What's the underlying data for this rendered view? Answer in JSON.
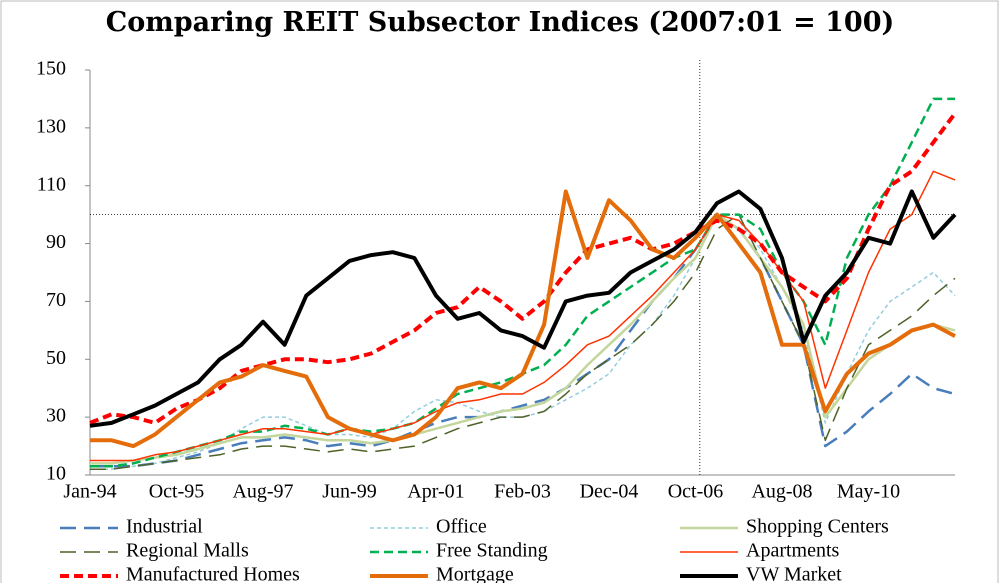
{
  "chart_data": {
    "type": "line",
    "title": "Comparing REIT Subsector Indices (2007:01 = 100)",
    "categories": [
      "Jan-94",
      null,
      null,
      null,
      "Oct-95",
      null,
      null,
      null,
      "Aug-97",
      null,
      null,
      null,
      "Jun-99",
      null,
      null,
      null,
      "Apr-01",
      null,
      null,
      null,
      "Feb-03",
      null,
      null,
      null,
      "Dec-04",
      null,
      null,
      null,
      "Oct-06",
      null,
      null,
      null,
      "Aug-08",
      null,
      null,
      null,
      "May-10",
      null,
      null,
      null,
      null
    ],
    "ylim": [
      10,
      150
    ],
    "yticks": [
      10,
      30,
      50,
      70,
      90,
      110,
      130,
      150
    ],
    "reference_y": 100,
    "reference_x": 28.2,
    "series": [
      {
        "name": "Industrial",
        "color": "#4a7ebb",
        "style": "long-dash",
        "weight": "medium",
        "values": [
          13,
          13,
          13,
          14,
          15,
          17,
          19,
          21,
          22,
          23,
          22,
          20,
          21,
          20,
          22,
          25,
          28,
          30,
          30,
          32,
          34,
          36,
          40,
          45,
          50,
          60,
          70,
          78,
          88,
          100,
          95,
          85,
          70,
          55,
          20,
          25,
          32,
          38,
          45,
          40,
          38
        ]
      },
      {
        "name": "Office",
        "color": "#93cddd",
        "style": "dotted",
        "weight": "thin",
        "values": [
          12,
          12,
          13,
          14,
          16,
          18,
          21,
          26,
          30,
          30,
          27,
          24,
          24,
          23,
          26,
          32,
          36,
          35,
          32,
          30,
          30,
          32,
          36,
          40,
          45,
          55,
          62,
          72,
          85,
          100,
          98,
          88,
          75,
          60,
          28,
          45,
          60,
          70,
          75,
          80,
          72
        ]
      },
      {
        "name": "Shopping Centers",
        "color": "#c3d69b",
        "style": "solid",
        "weight": "medium",
        "values": [
          14,
          14,
          15,
          16,
          17,
          19,
          21,
          23,
          23,
          24,
          23,
          22,
          22,
          21,
          22,
          24,
          26,
          28,
          30,
          32,
          33,
          35,
          40,
          48,
          55,
          62,
          70,
          78,
          85,
          100,
          95,
          85,
          75,
          62,
          30,
          40,
          50,
          55,
          60,
          62,
          60
        ]
      },
      {
        "name": "Regional Malls",
        "color": "#4f6228",
        "style": "long-dash",
        "weight": "thin",
        "values": [
          12,
          12,
          13,
          14,
          15,
          16,
          17,
          19,
          20,
          20,
          19,
          18,
          19,
          18,
          19,
          20,
          23,
          26,
          28,
          30,
          30,
          32,
          38,
          45,
          50,
          55,
          62,
          70,
          80,
          95,
          100,
          85,
          70,
          55,
          22,
          40,
          55,
          60,
          65,
          72,
          78
        ]
      },
      {
        "name": "Free Standing",
        "color": "#00b050",
        "style": "dashed",
        "weight": "medium",
        "values": [
          13,
          13,
          14,
          16,
          18,
          20,
          22,
          25,
          25,
          27,
          26,
          24,
          26,
          25,
          26,
          28,
          33,
          38,
          40,
          42,
          45,
          48,
          55,
          65,
          70,
          75,
          80,
          85,
          88,
          100,
          100,
          95,
          80,
          70,
          55,
          85,
          100,
          110,
          125,
          140,
          140
        ]
      },
      {
        "name": "Apartments",
        "color": "#ff3300",
        "style": "solid",
        "weight": "thin",
        "values": [
          15,
          15,
          15,
          17,
          18,
          20,
          22,
          24,
          26,
          26,
          25,
          24,
          26,
          24,
          26,
          28,
          32,
          35,
          36,
          38,
          38,
          42,
          48,
          55,
          58,
          65,
          72,
          80,
          88,
          100,
          98,
          90,
          80,
          70,
          40,
          60,
          80,
          95,
          100,
          115,
          112
        ]
      },
      {
        "name": "Manufactured Homes",
        "color": "#ff0000",
        "style": "dashed",
        "weight": "thick",
        "values": [
          28,
          31,
          30,
          28,
          33,
          36,
          40,
          46,
          48,
          50,
          50,
          49,
          50,
          52,
          56,
          60,
          66,
          68,
          75,
          70,
          64,
          70,
          80,
          88,
          90,
          92,
          88,
          90,
          94,
          98,
          95,
          90,
          80,
          75,
          70,
          78,
          95,
          110,
          115,
          125,
          135
        ]
      },
      {
        "name": "Mortgage",
        "color": "#e46c0a",
        "style": "solid",
        "weight": "thick",
        "values": [
          22,
          22,
          20,
          24,
          30,
          36,
          42,
          44,
          48,
          46,
          44,
          30,
          26,
          24,
          22,
          24,
          30,
          40,
          42,
          40,
          45,
          62,
          108,
          85,
          105,
          98,
          88,
          85,
          92,
          100,
          90,
          80,
          55,
          55,
          32,
          45,
          52,
          55,
          60,
          62,
          58
        ]
      },
      {
        "name": "VW Market",
        "color": "#000000",
        "style": "solid",
        "weight": "thick",
        "values": [
          27,
          28,
          31,
          34,
          38,
          42,
          50,
          55,
          63,
          55,
          72,
          78,
          84,
          86,
          87,
          85,
          72,
          64,
          66,
          60,
          58,
          54,
          70,
          72,
          73,
          80,
          84,
          88,
          94,
          104,
          108,
          102,
          85,
          56,
          72,
          80,
          92,
          90,
          108,
          92,
          100
        ]
      }
    ]
  }
}
